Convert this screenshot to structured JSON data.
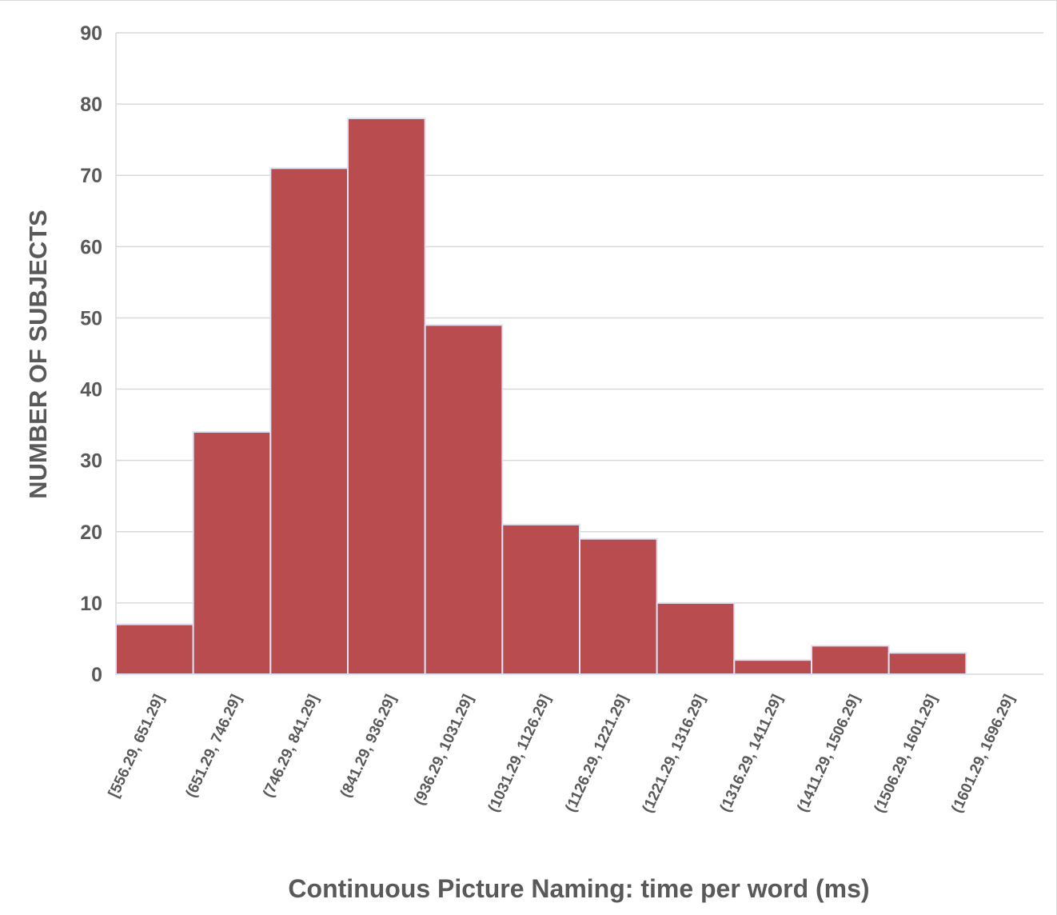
{
  "chart_data": {
    "type": "bar",
    "title": "",
    "xlabel": "Continuous Picture Naming: time per word (ms)",
    "ylabel": "NUMBER OF SUBJECTS",
    "categories": [
      "[556.29, 651.29]",
      "(651.29, 746.29]",
      "(746.29, 841.29]",
      "(841.29, 936.29]",
      "(936.29, 1031.29]",
      "(1031.29, 1126.29]",
      "(1126.29, 1221.29]",
      "(1221.29, 1316.29]",
      "(1316.29, 1411.29]",
      "(1411.29, 1506.29]",
      "(1506.29, 1601.29]",
      "(1601.29, 1696.29]"
    ],
    "values": [
      7,
      34,
      71,
      78,
      49,
      21,
      19,
      10,
      2,
      4,
      3,
      0
    ],
    "ylim": [
      0,
      90
    ],
    "yticks": [
      0,
      10,
      20,
      30,
      40,
      50,
      60,
      70,
      80,
      90
    ],
    "grid": true,
    "legend": "none",
    "bar_color": "#b84c4f",
    "bar_edge_color": "#dde3f5",
    "grid_color": "#d9d9d9",
    "text_color": "#595959"
  }
}
